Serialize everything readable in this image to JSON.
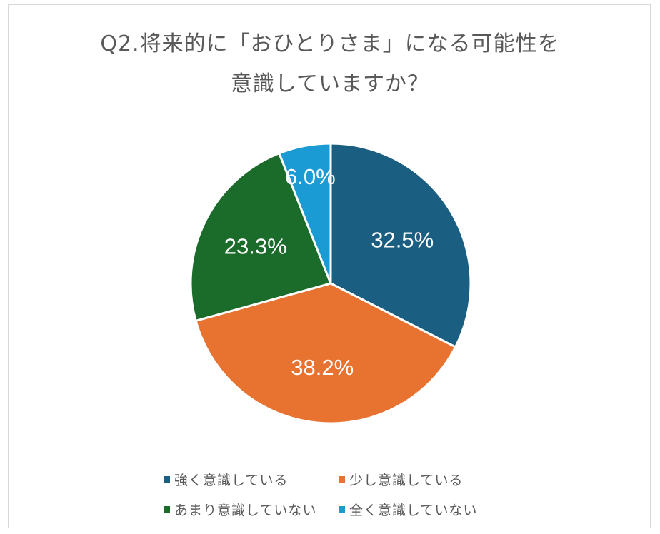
{
  "chart_data": {
    "type": "pie",
    "title": "Q2.将来的に「おひとりさま」になる可能性を意識していますか？",
    "title_lines": [
      "Q2.将来的に「おひとりさま」になる可能性を",
      "意識していますか？"
    ],
    "categories": [
      "強く意識している",
      "少し意識している",
      "あまり意識していない",
      "全く意識していない"
    ],
    "values": [
      32.5,
      38.2,
      23.3,
      6.0
    ],
    "labels": [
      "32.5%",
      "38.2%",
      "23.3%",
      "6.0%"
    ],
    "colors": [
      "#1a5f82",
      "#e87331",
      "#1b6b2a",
      "#1a9bd4"
    ],
    "unit": "%",
    "legend_position": "bottom",
    "start_angle_deg": 0,
    "direction": "clockwise"
  },
  "legend": {
    "items": [
      {
        "label": "強く意識している",
        "color": "#1a5f82"
      },
      {
        "label": "少し意識している",
        "color": "#e87331"
      },
      {
        "label": "あまり意識していない",
        "color": "#1b6b2a"
      },
      {
        "label": "全く意識していない",
        "color": "#1a9bd4"
      }
    ]
  }
}
